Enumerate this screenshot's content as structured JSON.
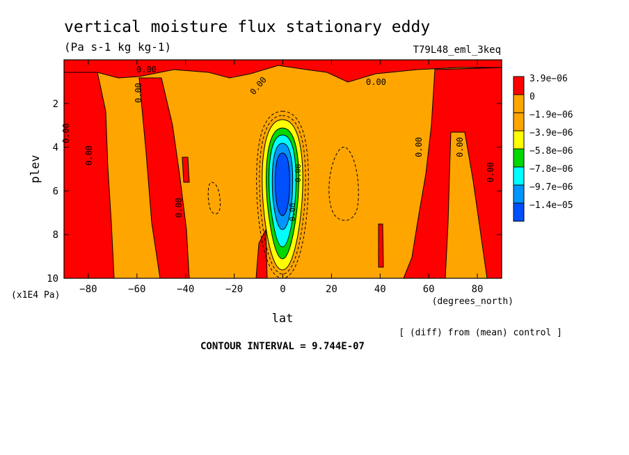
{
  "chart_data": {
    "type": "heatmap",
    "title": "vertical moisture flux stationary eddy",
    "subtitle": "(Pa s-1 kg kg-1)",
    "run_label": "T79L48_eml_3keq",
    "xlabel": "lat",
    "x_units": "(degrees_north)",
    "ylabel": "plev",
    "y_units": "(x1E4 Pa)",
    "xlim": [
      -90,
      90
    ],
    "ylim": [
      0,
      10
    ],
    "y_inverted": true,
    "x_ticks": [
      -80,
      -60,
      -40,
      -20,
      0,
      20,
      40,
      60,
      80
    ],
    "y_ticks": [
      2,
      4,
      6,
      8,
      10
    ],
    "note": "[ (diff) from (mean) control ]",
    "contour_interval_label": "CONTOUR INTERVAL = 9.744E-07",
    "contour_labels": [
      "0.00",
      "0.00",
      "0.00",
      "0.00",
      "0.00",
      "0.00",
      "0.00",
      "0.00",
      "0.00",
      "0.00",
      "0.00",
      "0.00"
    ],
    "legend": {
      "placement": "right",
      "levels": [
        {
          "label": "3.9e-06",
          "color": "#ff0000"
        },
        {
          "label": "0",
          "color": "#ffa500"
        },
        {
          "label": "-1.9e-06",
          "color": "#ffa500"
        },
        {
          "label": "-3.9e-06",
          "color": "#ffff00"
        },
        {
          "label": "-5.8e-06",
          "color": "#00d800"
        },
        {
          "label": "-7.8e-06",
          "color": "#00ffff"
        },
        {
          "label": "-9.7e-06",
          "color": "#0096ff"
        },
        {
          "label": "-1.4e-05",
          "color": "#0050ff"
        }
      ]
    },
    "colors": {
      "positive": "#ff0000",
      "near_zero": "#ffa500",
      "yellow": "#ffff00",
      "green": "#00d800",
      "cyan": "#00ffff",
      "blue": "#0096ff",
      "dark_blue": "#0050ff"
    }
  }
}
